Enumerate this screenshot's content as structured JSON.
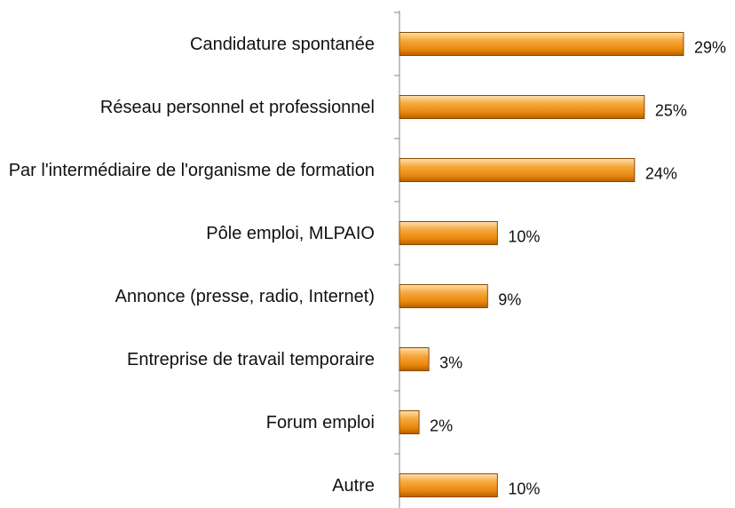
{
  "chart_data": {
    "type": "bar",
    "orientation": "horizontal",
    "categories": [
      "Candidature spontanée",
      "Réseau personnel et professionnel",
      "Par l'intermédiaire de l'organisme de formation",
      "Pôle emploi, MLPAIO",
      "Annonce (presse, radio, Internet)",
      "Entreprise de travail temporaire",
      "Forum emploi",
      "Autre"
    ],
    "values": [
      29,
      25,
      24,
      10,
      9,
      3,
      2,
      10
    ],
    "value_labels": [
      "29%",
      "25%",
      "24%",
      "10%",
      "9%",
      "3%",
      "2%",
      "10%"
    ],
    "color": "#f0900f"
  }
}
